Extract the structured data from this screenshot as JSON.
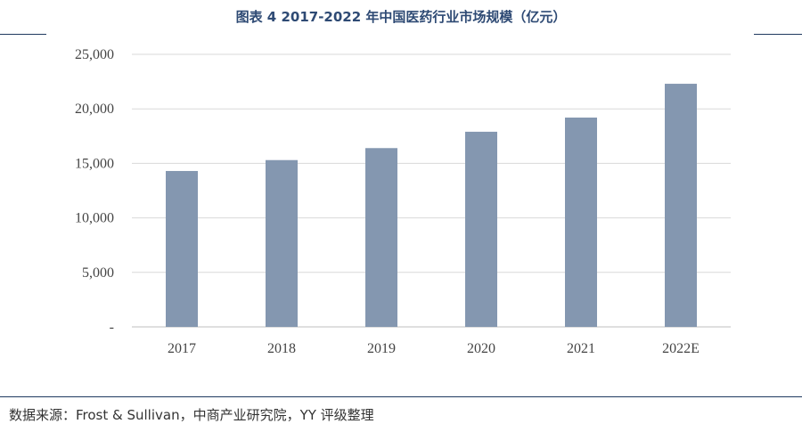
{
  "chart_data": {
    "type": "bar",
    "title": "图表 4 2017-2022 年中国医药行业市场规模（亿元）",
    "categories": [
      "2017",
      "2018",
      "2019",
      "2020",
      "2021",
      "2022E"
    ],
    "values": [
      14300,
      15300,
      16400,
      17900,
      19200,
      22300
    ],
    "ylim": [
      0,
      25000
    ],
    "yticks": [
      0,
      5000,
      10000,
      15000,
      20000,
      25000
    ],
    "ytick_labels": [
      "-",
      "5,000",
      "10,000",
      "15,000",
      "20,000",
      "25,000"
    ],
    "xlabel": "",
    "ylabel": "",
    "grid": true,
    "bar_color": "#8497b0",
    "legend": "none"
  },
  "source": "数据来源：Frost & Sullivan，中商产业研究院，YY 评级整理"
}
